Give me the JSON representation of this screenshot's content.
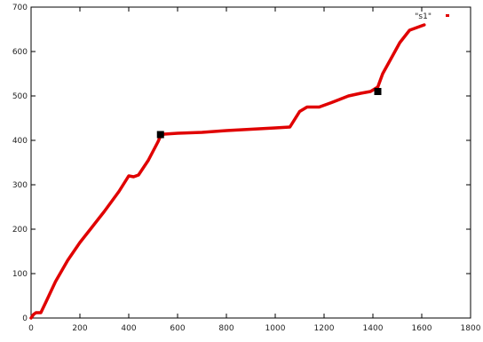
{
  "chart_data": {
    "type": "line",
    "title": "",
    "xlabel": "",
    "ylabel": "",
    "xlim": [
      0,
      1800
    ],
    "ylim": [
      0,
      700
    ],
    "xticks": [
      0,
      200,
      400,
      600,
      800,
      1000,
      1200,
      1400,
      1600,
      1800
    ],
    "yticks": [
      0,
      100,
      200,
      300,
      400,
      500,
      600,
      700
    ],
    "xtick_labels": [
      "0",
      "200",
      "400",
      "600",
      "800",
      "1000",
      "1200",
      "1400",
      "1600",
      "1800"
    ],
    "ytick_labels": [
      "0",
      "100",
      "200",
      "300",
      "400",
      "500",
      "600",
      "700"
    ],
    "grid": false,
    "legend_placement": "top-right",
    "series": [
      {
        "name": "\"s1\"",
        "color": "#e00000",
        "points": [
          [
            0,
            0
          ],
          [
            10,
            8
          ],
          [
            20,
            12
          ],
          [
            40,
            12
          ],
          [
            60,
            35
          ],
          [
            100,
            82
          ],
          [
            150,
            130
          ],
          [
            200,
            170
          ],
          [
            250,
            205
          ],
          [
            300,
            240
          ],
          [
            360,
            285
          ],
          [
            400,
            320
          ],
          [
            420,
            318
          ],
          [
            440,
            322
          ],
          [
            480,
            355
          ],
          [
            520,
            397
          ],
          [
            530,
            410
          ],
          [
            545,
            414
          ],
          [
            600,
            416
          ],
          [
            700,
            418
          ],
          [
            800,
            422
          ],
          [
            900,
            425
          ],
          [
            1000,
            428
          ],
          [
            1060,
            430
          ],
          [
            1100,
            465
          ],
          [
            1130,
            475
          ],
          [
            1180,
            475
          ],
          [
            1230,
            485
          ],
          [
            1300,
            500
          ],
          [
            1350,
            506
          ],
          [
            1390,
            510
          ],
          [
            1420,
            520
          ],
          [
            1440,
            550
          ],
          [
            1470,
            580
          ],
          [
            1510,
            620
          ],
          [
            1550,
            648
          ],
          [
            1610,
            660
          ]
        ]
      }
    ],
    "markers": [
      {
        "x": 530,
        "y": 413,
        "color": "#000000"
      },
      {
        "x": 1420,
        "y": 510,
        "color": "#000000"
      }
    ]
  }
}
